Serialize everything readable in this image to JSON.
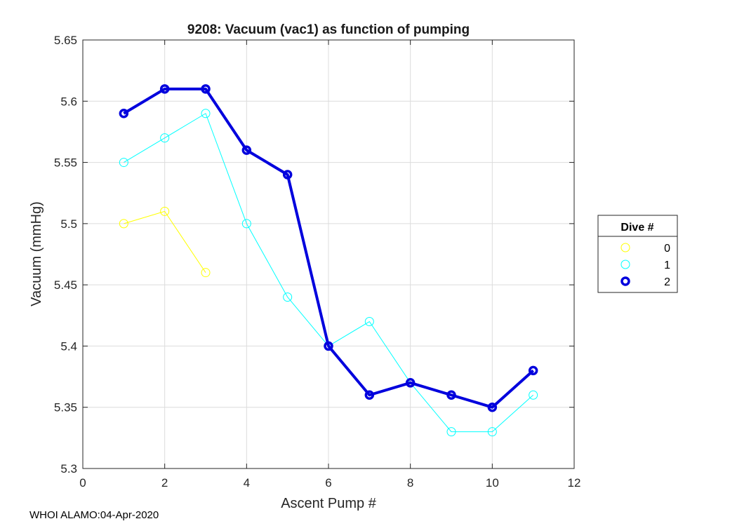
{
  "chart_data": {
    "type": "line",
    "title": "9208: Vacuum (vac1) as function of pumping",
    "xlabel": "Ascent Pump #",
    "ylabel": "Vacuum (mmHg)",
    "xlim": [
      0,
      12
    ],
    "ylim": [
      5.3,
      5.65
    ],
    "xticks": [
      0,
      2,
      4,
      6,
      8,
      10,
      12
    ],
    "yticks": [
      5.3,
      5.35,
      5.4,
      5.45,
      5.5,
      5.55,
      5.6,
      5.65
    ],
    "xtick_labels": [
      "0",
      "2",
      "4",
      "6",
      "8",
      "10",
      "12"
    ],
    "ytick_labels": [
      "5.3",
      "5.35",
      "5.4",
      "5.45",
      "5.5",
      "5.55",
      "5.6",
      "5.65"
    ],
    "grid": true,
    "legend": {
      "title": "Dive #",
      "position": "outside-right"
    },
    "series": [
      {
        "name": "0",
        "color": "#ffff00",
        "bold": false,
        "x": [
          1,
          2,
          3
        ],
        "values": [
          5.5,
          5.51,
          5.46
        ]
      },
      {
        "name": "1",
        "color": "#00ffff",
        "bold": false,
        "x": [
          1,
          2,
          3,
          4,
          5,
          6,
          7,
          8,
          9,
          10,
          11
        ],
        "values": [
          5.55,
          5.57,
          5.59,
          5.5,
          5.44,
          5.4,
          5.42,
          5.37,
          5.33,
          5.33,
          5.36
        ]
      },
      {
        "name": "2",
        "color": "#0000dd",
        "bold": true,
        "x": [
          1,
          2,
          3,
          4,
          5,
          6,
          7,
          8,
          9,
          10,
          11
        ],
        "values": [
          5.59,
          5.61,
          5.61,
          5.56,
          5.54,
          5.4,
          5.36,
          5.37,
          5.36,
          5.35,
          5.38
        ]
      }
    ]
  },
  "footer": {
    "text": "WHOI ALAMO:04-Apr-2020"
  }
}
